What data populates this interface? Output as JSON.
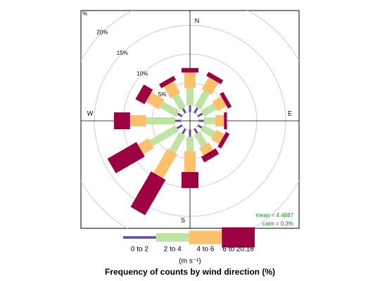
{
  "chart_data": {
    "type": "windrose",
    "title": "Frequency of counts by wind direction (%)",
    "units": "(m s⁻¹)",
    "corner_label": "%",
    "compass_labels": [
      {
        "value": 0,
        "label": "N"
      },
      {
        "value": 90,
        "label": "E"
      },
      {
        "value": 180,
        "label": "S"
      },
      {
        "value": 270,
        "label": "W"
      }
    ],
    "directions": [
      0,
      30,
      60,
      90,
      120,
      150,
      180,
      210,
      240,
      270,
      300,
      330
    ],
    "rlim": [
      0,
      20
    ],
    "rticks": [
      {
        "value": 5,
        "label": "5%"
      },
      {
        "value": 10,
        "label": "10%"
      },
      {
        "value": 15,
        "label": "15%"
      },
      {
        "value": 20,
        "label": "20%"
      }
    ],
    "series": [
      {
        "name": "0 to 2",
        "color": "#5e4fa2",
        "values": [
          1.1,
          1.0,
          0.9,
          0.8,
          0.8,
          0.9,
          1.2,
          1.0,
          1.0,
          1.0,
          0.9,
          0.9
        ]
      },
      {
        "name": "2 to 4",
        "color": "#bfe3a0",
        "values": [
          3.0,
          3.2,
          2.5,
          2.0,
          2.4,
          2.4,
          2.5,
          3.5,
          5.2,
          5.0,
          3.2,
          2.6
        ]
      },
      {
        "name": "4 to 6",
        "color": "#fdc16b",
        "values": [
          2.7,
          2.4,
          1.8,
          1.5,
          1.6,
          1.5,
          3.6,
          4.9,
          2.1,
          2.8,
          2.6,
          2.3
        ]
      },
      {
        "name": "6 to 20.16",
        "color": "#9e0142",
        "values": [
          0.8,
          0.8,
          0.7,
          0.5,
          0.7,
          1.1,
          2.8,
          7.1,
          5.8,
          2.8,
          1.8,
          0.8
        ]
      }
    ],
    "annotations": [
      "mean = 4.4887",
      "calm = 0.3%"
    ]
  }
}
